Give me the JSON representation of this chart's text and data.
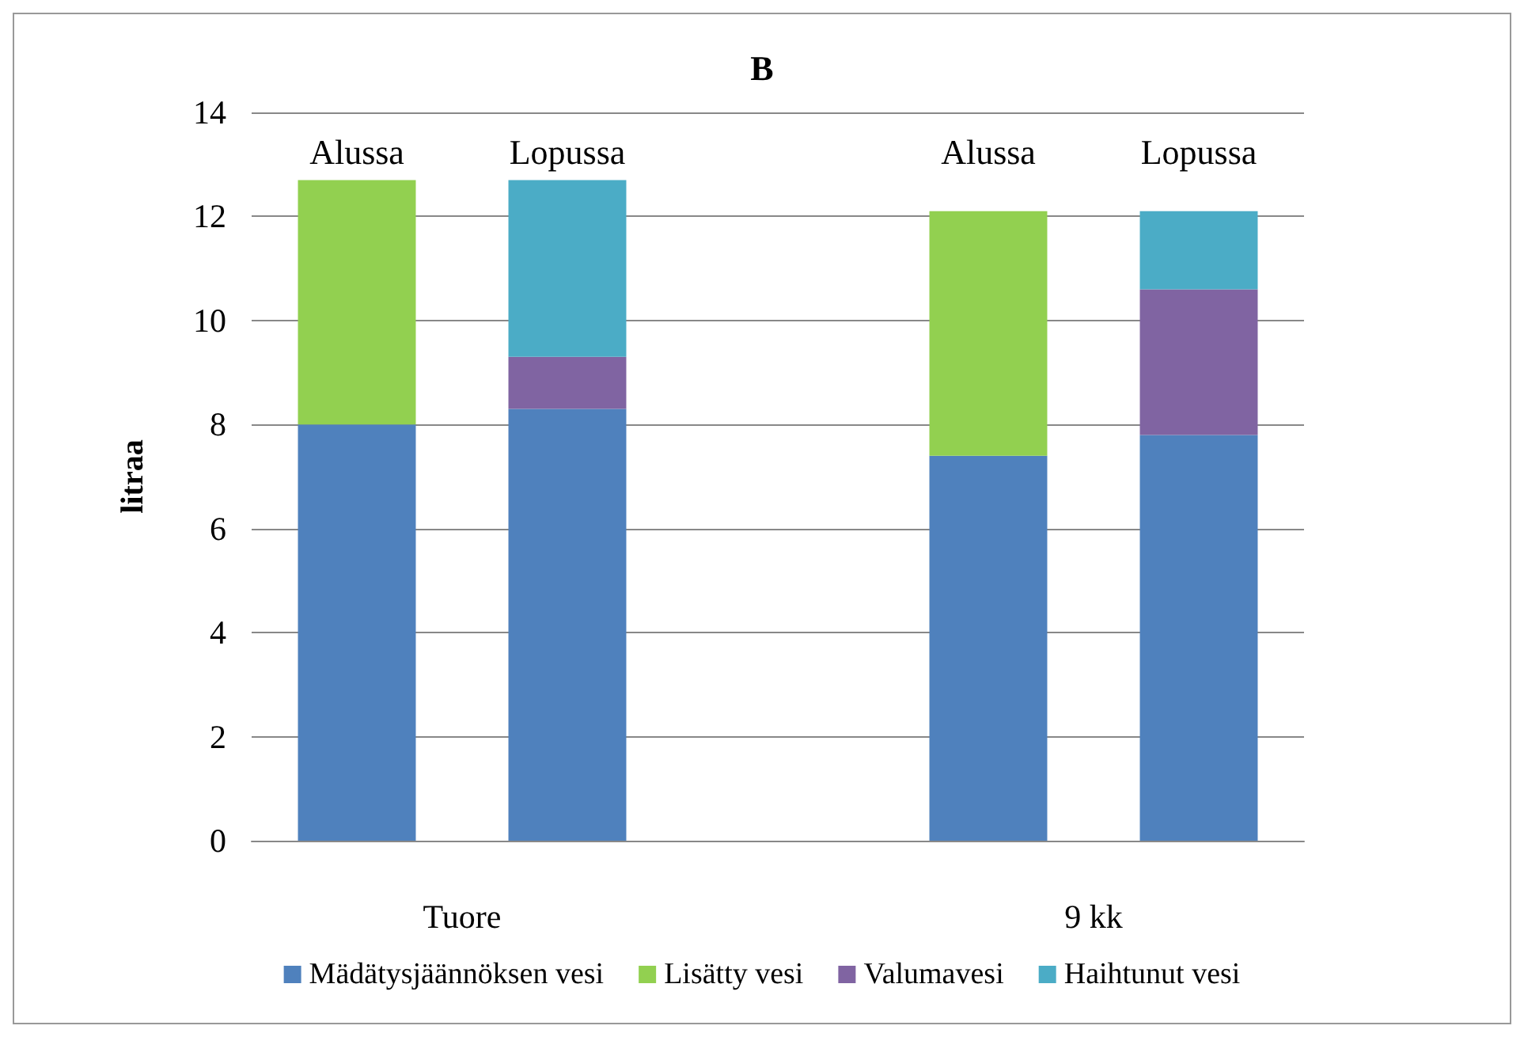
{
  "chart_data": {
    "type": "bar",
    "title": "B",
    "ylabel": "litraa",
    "stacked": true,
    "categories": [
      "Alussa",
      "Lopussa",
      null,
      "Alussa",
      "Lopussa"
    ],
    "series": [
      {
        "name": "Mädätysjäännöksen vesi",
        "color": "#4f81bd",
        "values": [
          8.0,
          8.3,
          null,
          7.4,
          7.8
        ]
      },
      {
        "name": "Lisätty vesi",
        "color": "#92d050",
        "values": [
          4.7,
          null,
          null,
          4.7,
          null
        ]
      },
      {
        "name": "Valumavesi",
        "color": "#8064a2",
        "values": [
          null,
          1.0,
          null,
          null,
          2.8
        ]
      },
      {
        "name": "Haihtunut vesi",
        "color": "#4bacc6",
        "values": [
          null,
          3.4,
          null,
          null,
          1.5
        ]
      }
    ],
    "annotations": [
      "Tuore",
      "9 kk"
    ],
    "ylim": [
      0,
      14
    ],
    "yticks": [
      0,
      2,
      4,
      6,
      8,
      10,
      12,
      14
    ],
    "grid": "y",
    "legend": "bottom"
  }
}
